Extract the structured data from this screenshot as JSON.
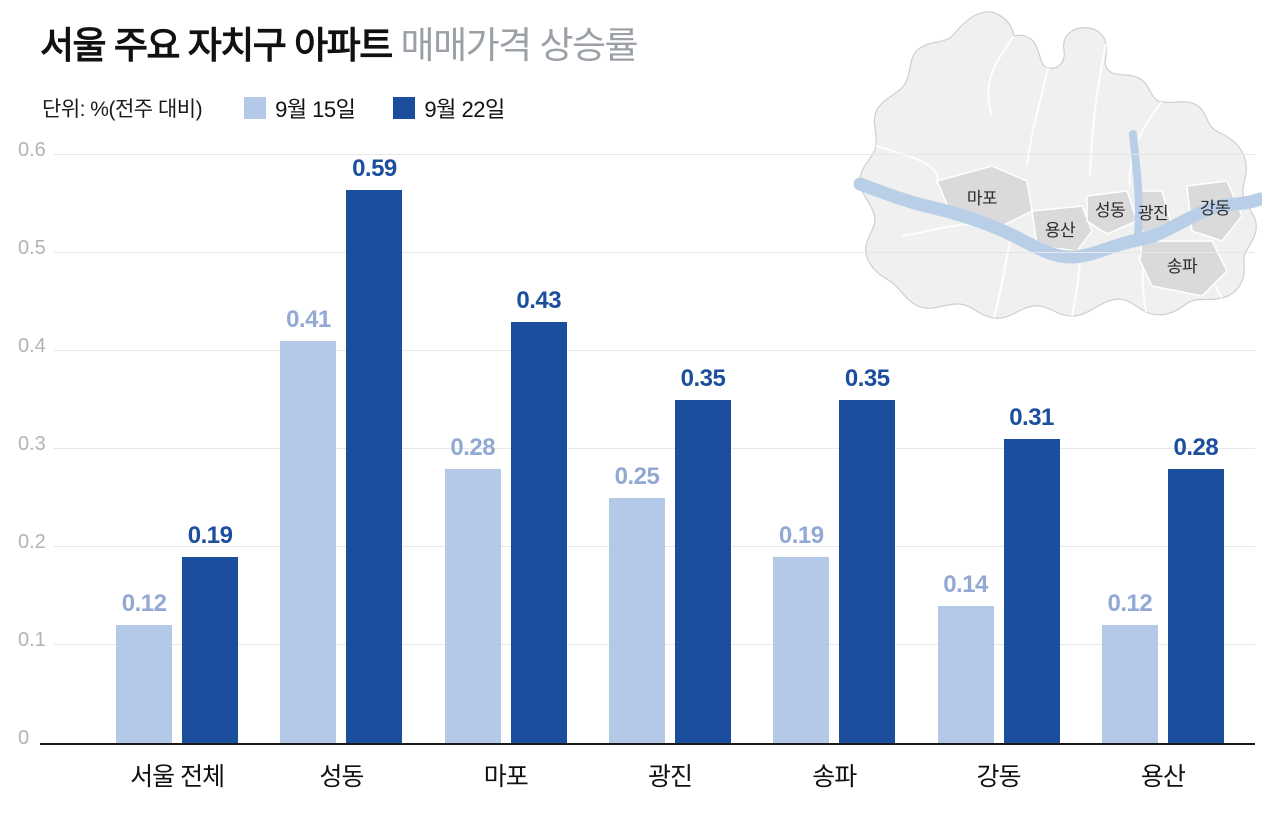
{
  "header": {
    "title_bold": "서울 주요 자치구 아파트",
    "title_rest": "매매가격 상승률",
    "unit": "단위: %(전주 대비)"
  },
  "legend": [
    {
      "key": "sep15",
      "label": "9월 15일",
      "color": "#b4c8e8"
    },
    {
      "key": "sep22",
      "label": "9월 22일",
      "color": "#1b4f9e"
    }
  ],
  "chart_data": {
    "type": "bar",
    "title": "서울 주요 자치구 아파트 매매가격 상승률",
    "xlabel": "",
    "ylabel": "%(전주 대비)",
    "categories": [
      "서울 전체",
      "성동",
      "마포",
      "광진",
      "송파",
      "강동",
      "용산"
    ],
    "series": [
      {
        "key": "sep15",
        "name": "9월 15일",
        "color": "#b4c8e8",
        "label_color": "#92a9d4",
        "values": [
          0.12,
          0.41,
          0.28,
          0.25,
          0.19,
          0.14,
          0.12
        ]
      },
      {
        "key": "sep22",
        "name": "9월 22일",
        "color": "#1b4f9e",
        "label_color": "#1b4f9e",
        "values": [
          0.19,
          0.59,
          0.43,
          0.35,
          0.35,
          0.31,
          0.28
        ]
      }
    ],
    "ylim": [
      0,
      0.6
    ],
    "ytick_step": 0.1,
    "yticks": [
      "0",
      "0.1",
      "0.2",
      "0.3",
      "0.4",
      "0.5",
      "0.6"
    ],
    "grid": true,
    "legend_position": "top"
  },
  "map": {
    "labels": [
      "마포",
      "용산",
      "성동",
      "광진",
      "강동",
      "송파"
    ],
    "base_color": "#f0f0f0",
    "highlight_color": "#dadada",
    "river_color": "#b9cfe8",
    "outline_color": "#cfcfcf"
  }
}
